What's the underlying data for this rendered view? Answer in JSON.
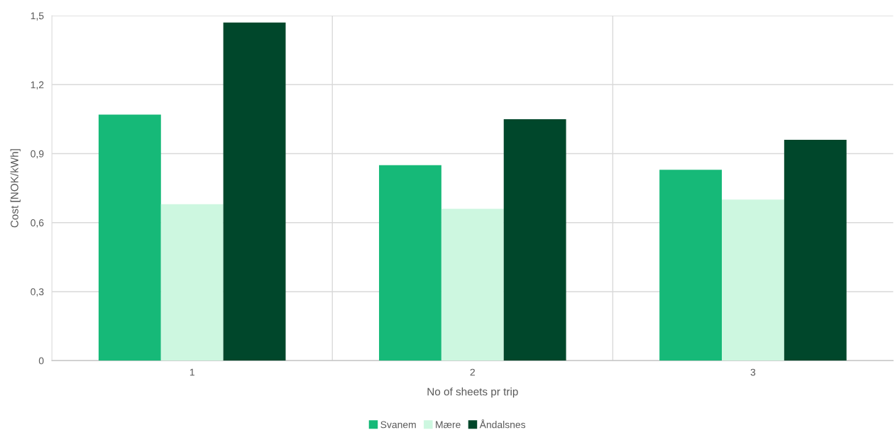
{
  "chart_data": {
    "type": "bar",
    "xlabel": "No of sheets pr trip",
    "ylabel": "Cost [NOK/kWh]",
    "categories": [
      "1",
      "2",
      "3"
    ],
    "series": [
      {
        "name": "Svanem",
        "color": "#16b978",
        "values": [
          1.07,
          0.85,
          0.83
        ]
      },
      {
        "name": "Mære",
        "color": "#cdf7e0",
        "values": [
          0.68,
          0.66,
          0.7
        ]
      },
      {
        "name": "Åndalsnes",
        "color": "#00472b",
        "values": [
          1.47,
          1.05,
          0.96
        ]
      }
    ],
    "ylim": [
      0,
      1.5
    ],
    "yticks": [
      {
        "value": 0,
        "label": "0"
      },
      {
        "value": 0.3,
        "label": "0,3"
      },
      {
        "value": 0.6,
        "label": "0,6"
      },
      {
        "value": 0.9,
        "label": "0,9"
      },
      {
        "value": 1.2,
        "label": "1,2"
      },
      {
        "value": 1.5,
        "label": "1,5"
      }
    ],
    "grid": true,
    "legend": "bottom"
  }
}
